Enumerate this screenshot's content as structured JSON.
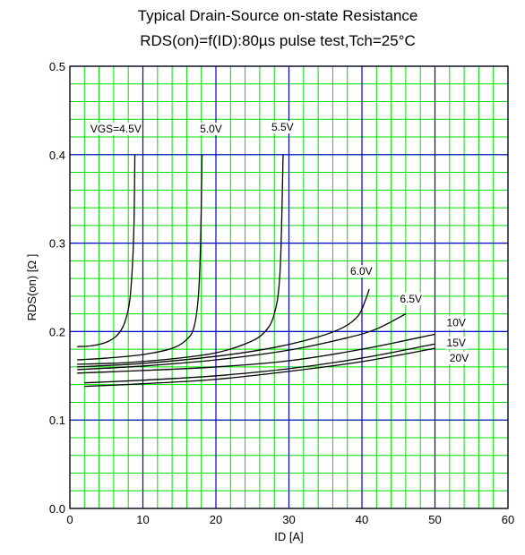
{
  "title": "Typical Drain-Source on-state Resistance",
  "subtitle": "RDS(on)=f(ID):80µs pulse test,Tch=25°C",
  "chart_data": {
    "type": "line",
    "title": "Typical Drain-Source on-state Resistance",
    "subtitle": "RDS(on)=f(ID):80µs pulse test,Tch=25°C",
    "xlabel": "ID [A]",
    "ylabel": "RDS(on) [Ω ]",
    "xlim": [
      0,
      60
    ],
    "ylim": [
      0,
      0.5
    ],
    "x_ticks": [
      0,
      10,
      20,
      30,
      40,
      50,
      60
    ],
    "y_ticks": [
      0.0,
      0.1,
      0.2,
      0.3,
      0.4,
      0.5
    ],
    "x_tick_labels": [
      "0",
      "10",
      "20",
      "30",
      "40",
      "50",
      "60"
    ],
    "y_tick_labels": [
      "0.0",
      "0.1",
      "0.2",
      "0.3",
      "0.4",
      "0.5"
    ],
    "grid": true,
    "grid_color": "#00dd00",
    "major_grid_color": "#0000cc",
    "series": [
      {
        "name": "VGS=4.5V",
        "points": [
          [
            1,
            0.183
          ],
          [
            3,
            0.184
          ],
          [
            5,
            0.188
          ],
          [
            6.5,
            0.196
          ],
          [
            7.5,
            0.21
          ],
          [
            8.2,
            0.235
          ],
          [
            8.6,
            0.28
          ],
          [
            8.8,
            0.33
          ],
          [
            8.9,
            0.4
          ]
        ]
      },
      {
        "name": "5.0V",
        "points": [
          [
            1,
            0.168
          ],
          [
            5,
            0.17
          ],
          [
            10,
            0.174
          ],
          [
            14,
            0.181
          ],
          [
            16,
            0.191
          ],
          [
            17,
            0.205
          ],
          [
            17.6,
            0.24
          ],
          [
            17.9,
            0.3
          ],
          [
            18.1,
            0.4
          ]
        ]
      },
      {
        "name": "5.5V",
        "points": [
          [
            1,
            0.163
          ],
          [
            8,
            0.165
          ],
          [
            15,
            0.17
          ],
          [
            20,
            0.176
          ],
          [
            24,
            0.186
          ],
          [
            26.5,
            0.198
          ],
          [
            28,
            0.22
          ],
          [
            28.8,
            0.27
          ],
          [
            29.2,
            0.4
          ]
        ]
      },
      {
        "name": "6.0V",
        "points": [
          [
            1,
            0.16
          ],
          [
            10,
            0.164
          ],
          [
            20,
            0.172
          ],
          [
            28,
            0.182
          ],
          [
            34,
            0.194
          ],
          [
            37.5,
            0.205
          ],
          [
            39.5,
            0.218
          ],
          [
            40.5,
            0.236
          ],
          [
            41,
            0.248
          ]
        ]
      },
      {
        "name": "6.5V",
        "points": [
          [
            1,
            0.157
          ],
          [
            10,
            0.161
          ],
          [
            20,
            0.168
          ],
          [
            30,
            0.179
          ],
          [
            38,
            0.193
          ],
          [
            42,
            0.203
          ],
          [
            46,
            0.22
          ]
        ]
      },
      {
        "name": "10V",
        "points": [
          [
            1,
            0.153
          ],
          [
            10,
            0.156
          ],
          [
            20,
            0.16
          ],
          [
            30,
            0.167
          ],
          [
            40,
            0.18
          ],
          [
            50,
            0.197
          ]
        ]
      },
      {
        "name": "15V",
        "points": [
          [
            2,
            0.142
          ],
          [
            10,
            0.145
          ],
          [
            20,
            0.15
          ],
          [
            30,
            0.158
          ],
          [
            40,
            0.17
          ],
          [
            50,
            0.186
          ]
        ]
      },
      {
        "name": "20V",
        "points": [
          [
            2,
            0.138
          ],
          [
            10,
            0.141
          ],
          [
            20,
            0.146
          ],
          [
            30,
            0.155
          ],
          [
            40,
            0.166
          ],
          [
            50,
            0.181
          ]
        ]
      }
    ]
  }
}
